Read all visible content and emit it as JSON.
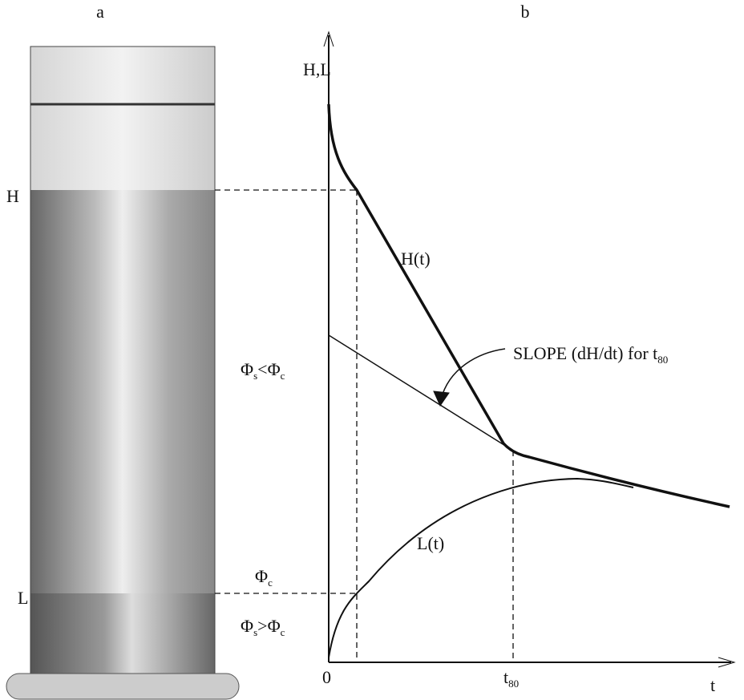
{
  "panels": {
    "a": "a",
    "b": "b"
  },
  "column": {
    "h_label": "H",
    "l_label": "L",
    "upper_zone": [
      {
        "t": "Φ"
      },
      {
        "s": "s"
      },
      {
        "t": "<Φ"
      },
      {
        "s": "c"
      }
    ],
    "boundary": [
      {
        "t": "Φ"
      },
      {
        "s": "c"
      }
    ],
    "lower_zone": [
      {
        "t": "Φ"
      },
      {
        "s": "s"
      },
      {
        "t": ">Φ"
      },
      {
        "s": "c"
      }
    ]
  },
  "plot": {
    "y_axis": "H,L",
    "x_axis": "t",
    "origin": "0",
    "t80": [
      {
        "t": "t"
      },
      {
        "s": "80"
      }
    ],
    "h_curve": "H(t)",
    "l_curve": "L(t)",
    "slope": [
      {
        "t": "SLOPE  (dH/dt) for t"
      },
      {
        "s": "80"
      }
    ]
  }
}
